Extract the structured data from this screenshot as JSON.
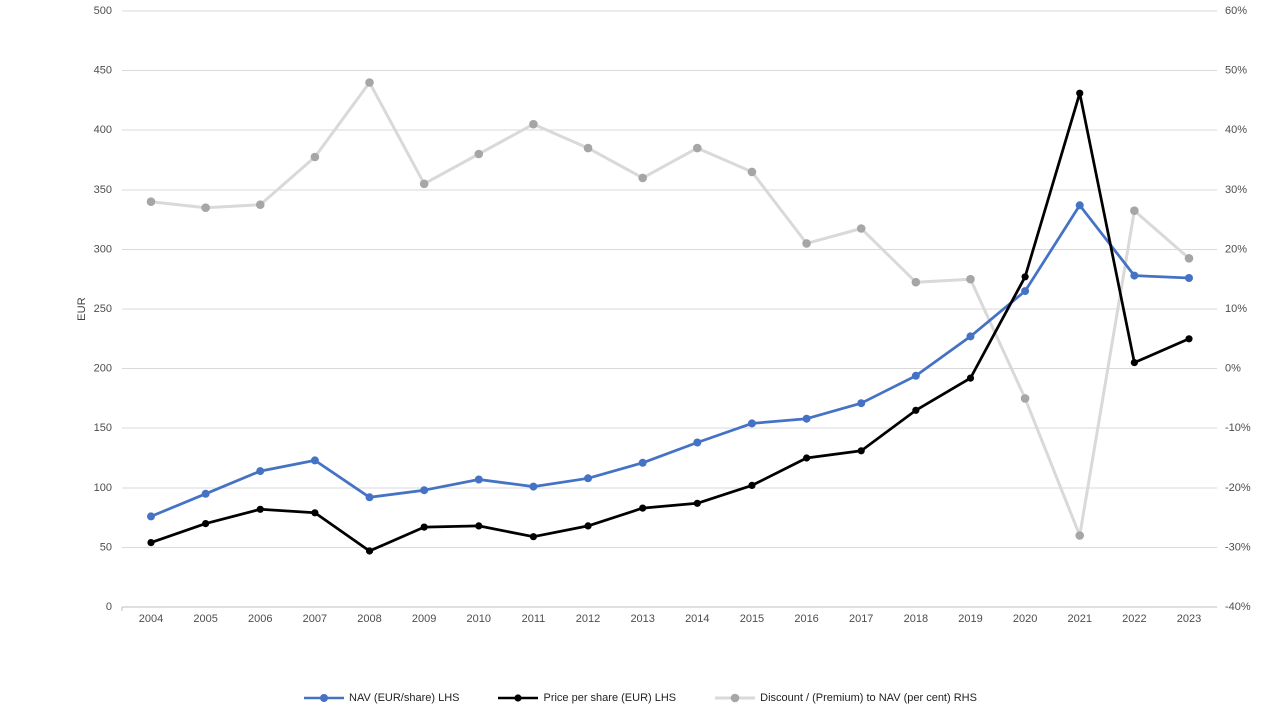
{
  "chart_data": {
    "type": "line",
    "title": "",
    "categories": [
      "2004",
      "2005",
      "2006",
      "2007",
      "2008",
      "2009",
      "2010",
      "2011",
      "2012",
      "2013",
      "2014",
      "2015",
      "2016",
      "2017",
      "2018",
      "2019",
      "2020",
      "2021",
      "2022",
      "2023"
    ],
    "series": [
      {
        "name": "NAV (EUR/share) LHS",
        "axis": "left",
        "color": "#4472C4",
        "marker_color": "#4472C4",
        "values": [
          76,
          95,
          114,
          123,
          92,
          98,
          107,
          101,
          108,
          121,
          138,
          154,
          158,
          171,
          194,
          227,
          265,
          337,
          278,
          276
        ]
      },
      {
        "name": "Price per share (EUR) LHS",
        "axis": "left",
        "color": "#000000",
        "marker_color": "#000000",
        "values": [
          54,
          70,
          82,
          79,
          47,
          67,
          68,
          59,
          68,
          83,
          87,
          102,
          125,
          131,
          165,
          192,
          277,
          431,
          205,
          225
        ]
      },
      {
        "name": "Discount / (Premium) to NAV (per cent) RHS",
        "axis": "right",
        "color": "#D9D9D9",
        "marker_color": "#A6A6A6",
        "values": [
          28,
          27,
          27.5,
          35.5,
          48,
          31,
          36,
          41,
          37,
          32,
          37,
          33,
          21,
          23.5,
          14.5,
          15,
          -5,
          -28,
          26.5,
          18.5
        ]
      }
    ],
    "left_axis": {
      "label": "EUR",
      "min": 0,
      "max": 500,
      "step": 50,
      "ticks": [
        "0",
        "50",
        "100",
        "150",
        "200",
        "250",
        "300",
        "350",
        "400",
        "450",
        "500"
      ]
    },
    "right_axis": {
      "label": "",
      "min": -40,
      "max": 60,
      "step": 10,
      "ticks": [
        "-40%",
        "-30%",
        "-20%",
        "-10%",
        "0%",
        "10%",
        "20%",
        "30%",
        "40%",
        "50%",
        "60%"
      ]
    },
    "grid": true,
    "legend_position": "bottom",
    "colors": {
      "gridline": "#D9D9D9",
      "axis_line": "#BFBFBF",
      "tick_label": "#4d4d4d",
      "background": "#ffffff"
    }
  }
}
